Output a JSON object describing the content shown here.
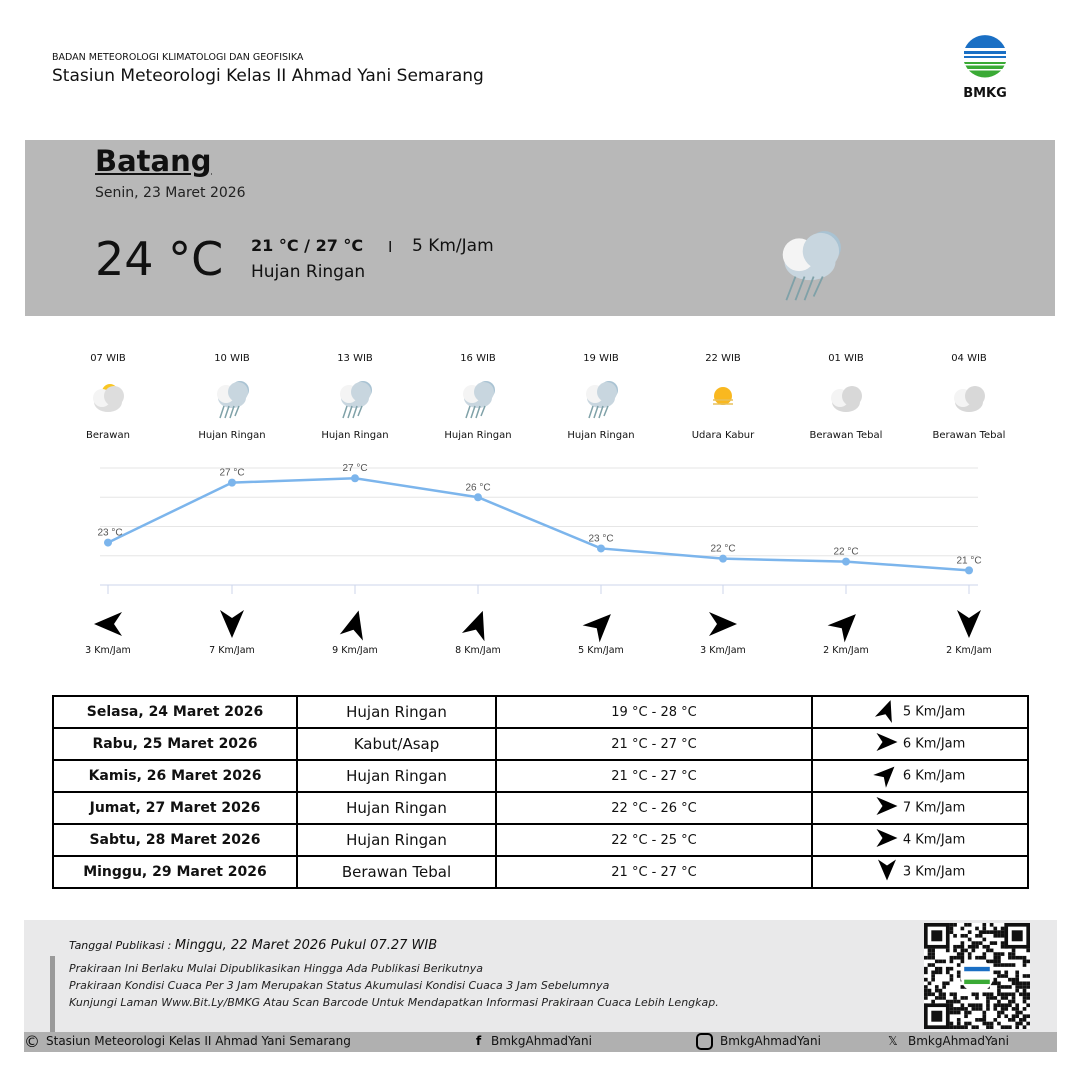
{
  "header": {
    "agency": "BADAN METEOROLOGI KLIMATOLOGI DAN GEOFISIKA",
    "station": "Stasiun Meteorologi Kelas II Ahmad Yani Semarang",
    "logo_text": "BMKG"
  },
  "current": {
    "city": "Batang",
    "date": "Senin, 23 Maret 2026",
    "temp": "24 °C",
    "range": "21 °C / 27 °C",
    "separator": "I",
    "wind": "5 Km/Jam",
    "condition": "Hujan Ringan",
    "icon": "rain-cloud-icon"
  },
  "hourly": [
    {
      "time": "07 WIB",
      "condition": "Berawan",
      "icon": "partly-cloudy",
      "temp_label": "23 °C",
      "wind": "3 Km/Jam",
      "wind_rotation": 180
    },
    {
      "time": "10 WIB",
      "condition": "Hujan Ringan",
      "icon": "rain",
      "temp_label": "27 °C",
      "wind": "7 Km/Jam",
      "wind_rotation": 90
    },
    {
      "time": "13 WIB",
      "condition": "Hujan Ringan",
      "icon": "rain",
      "temp_label": "27 °C",
      "wind": "9 Km/Jam",
      "wind_rotation": -75
    },
    {
      "time": "16 WIB",
      "condition": "Hujan Ringan",
      "icon": "rain",
      "temp_label": "26 °C",
      "wind": "8 Km/Jam",
      "wind_rotation": -70
    },
    {
      "time": "19 WIB",
      "condition": "Hujan Ringan",
      "icon": "rain",
      "temp_label": "23 °C",
      "wind": "5 Km/Jam",
      "wind_rotation": -45
    },
    {
      "time": "22 WIB",
      "condition": "Udara Kabur",
      "icon": "haze",
      "temp_label": "22 °C",
      "wind": "3 Km/Jam",
      "wind_rotation": 0
    },
    {
      "time": "01 WIB",
      "condition": "Berawan Tebal",
      "icon": "overcast",
      "temp_label": "22 °C",
      "wind": "2 Km/Jam",
      "wind_rotation": -45
    },
    {
      "time": "04 WIB",
      "condition": "Berawan Tebal",
      "icon": "overcast",
      "temp_label": "21 °C",
      "wind": "2 Km/Jam",
      "wind_rotation": 90
    }
  ],
  "chart_data": {
    "type": "line",
    "x": [
      "07 WIB",
      "10 WIB",
      "13 WIB",
      "16 WIB",
      "19 WIB",
      "22 WIB",
      "01 WIB",
      "04 WIB"
    ],
    "values": [
      22.9,
      27.0,
      27.3,
      26.0,
      22.5,
      21.8,
      21.6,
      21.0
    ],
    "ylim": [
      20,
      28
    ],
    "grid": true,
    "color": "#7cb5ec"
  },
  "daily": [
    {
      "date": "Selasa, 24 Maret 2026",
      "condition": "Hujan Ringan",
      "range": "19 °C - 28 °C",
      "wind": "5 Km/Jam",
      "wind_rotation": -70
    },
    {
      "date": "Rabu, 25 Maret 2026",
      "condition": "Kabut/Asap",
      "range": "21 °C - 27 °C",
      "wind": "6 Km/Jam",
      "wind_rotation": 0
    },
    {
      "date": "Kamis, 26 Maret 2026",
      "condition": "Hujan Ringan",
      "range": "21 °C - 27 °C",
      "wind": "6 Km/Jam",
      "wind_rotation": -45
    },
    {
      "date": "Jumat, 27 Maret 2026",
      "condition": "Hujan Ringan",
      "range": "22 °C - 26 °C",
      "wind": "7 Km/Jam",
      "wind_rotation": 0
    },
    {
      "date": "Sabtu, 28 Maret 2026",
      "condition": "Hujan Ringan",
      "range": "22 °C - 25 °C",
      "wind": "4 Km/Jam",
      "wind_rotation": 0
    },
    {
      "date": "Minggu, 29 Maret 2026",
      "condition": "Berawan Tebal",
      "range": "21 °C - 27 °C",
      "wind": "3 Km/Jam",
      "wind_rotation": 90
    }
  ],
  "footer": {
    "pub_label": "Tanggal Publikasi : ",
    "pub_value": "Minggu, 22 Maret 2026 Pukul 07.27 WIB",
    "notes": [
      "Prakiraan Ini Berlaku Mulai Dipublikasikan Hingga Ada Publikasi Berikutnya",
      "Prakiraan Kondisi Cuaca Per 3 Jam Merupakan Status Akumulasi Kondisi Cuaca 3 Jam Sebelumnya",
      "Kunjungi Laman Www.Bit.Ly/BMKG Atau Scan Barcode Untuk Mendapatkan Informasi Prakiraan Cuaca Lebih Lengkap."
    ],
    "copyright": "Stasiun Meteorologi Kelas II Ahmad Yani Semarang",
    "facebook": "BmkgAhmadYani",
    "instagram": "BmkgAhmadYani",
    "x": "BmkgAhmadYani"
  }
}
